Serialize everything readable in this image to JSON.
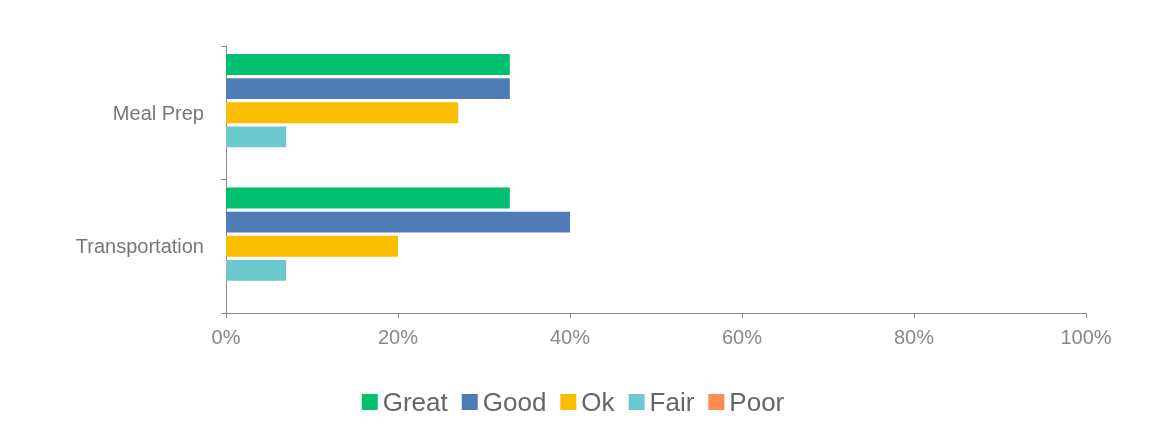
{
  "chart_data": {
    "type": "bar",
    "orientation": "horizontal",
    "categories": [
      "Meal Prep",
      "Transportation"
    ],
    "series": [
      {
        "name": "Great",
        "color": "#00bf6f",
        "values": [
          33,
          33
        ]
      },
      {
        "name": "Good",
        "color": "#507cb6",
        "values": [
          33,
          40
        ]
      },
      {
        "name": "Ok",
        "color": "#f9be00",
        "values": [
          27,
          20
        ]
      },
      {
        "name": "Fair",
        "color": "#6bc8cd",
        "values": [
          7,
          7
        ]
      },
      {
        "name": "Poor",
        "color": "#ff8b4f",
        "values": [
          0,
          0
        ]
      }
    ],
    "xlim": [
      0,
      100
    ],
    "xticks": [
      {
        "value": 0,
        "label": "0%"
      },
      {
        "value": 20,
        "label": "20%"
      },
      {
        "value": 40,
        "label": "40%"
      },
      {
        "value": 60,
        "label": "60%"
      },
      {
        "value": 80,
        "label": "80%"
      },
      {
        "value": 100,
        "label": "100%"
      }
    ],
    "grid": false,
    "legend": "bottom"
  }
}
